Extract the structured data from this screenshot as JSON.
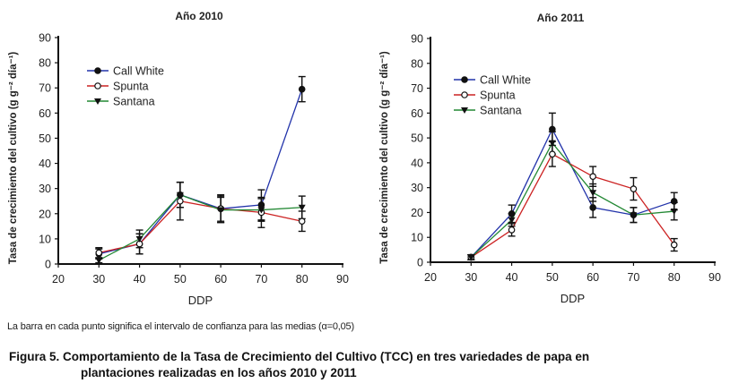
{
  "chart_data": [
    {
      "type": "line",
      "title": "Año 2010",
      "xlabel": "DDP",
      "ylabel": "Tasa de crecimiento del cultivo (g g⁻² día⁻¹)",
      "xlim": [
        20,
        90
      ],
      "ylim": [
        0,
        90
      ],
      "xticks": [
        20,
        30,
        40,
        50,
        60,
        70,
        80,
        90
      ],
      "yticks": [
        0,
        10,
        20,
        30,
        40,
        50,
        60,
        70,
        80,
        90
      ],
      "x": [
        30,
        40,
        50,
        60,
        70,
        80
      ],
      "legend_position": "top-left",
      "error_bars": "95% confidence interval",
      "series": [
        {
          "name": "Call White",
          "color": "#2233aa",
          "marker": "filled-circle",
          "values": [
            4,
            8,
            27.5,
            22,
            23.5,
            69.5
          ],
          "ci": [
            2,
            4,
            5,
            5.5,
            6,
            5
          ]
        },
        {
          "name": "Spunta",
          "color": "#cc2222",
          "marker": "open-circle",
          "values": [
            4.5,
            8,
            25,
            22,
            20.5,
            17
          ],
          "ci": [
            2,
            4,
            7.5,
            5,
            6,
            4
          ]
        },
        {
          "name": "Santana",
          "color": "#228833",
          "marker": "filled-triangle-down",
          "values": [
            1.5,
            10,
            27.5,
            21.5,
            21.5,
            22.5
          ],
          "ci": [
            1,
            3.5,
            5,
            5,
            4.5,
            4.5
          ]
        }
      ]
    },
    {
      "type": "line",
      "title": "Año 2011",
      "xlabel": "DDP",
      "ylabel": "Tasa de crecimiento del cultivo (g g⁻² día⁻¹)",
      "xlim": [
        20,
        90
      ],
      "ylim": [
        0,
        90
      ],
      "xticks": [
        20,
        30,
        40,
        50,
        60,
        70,
        80,
        90
      ],
      "yticks": [
        0,
        10,
        20,
        30,
        40,
        50,
        60,
        70,
        80,
        90
      ],
      "x": [
        30,
        40,
        50,
        60,
        70,
        80
      ],
      "legend_position": "top-left",
      "error_bars": "95% confidence interval",
      "series": [
        {
          "name": "Call White",
          "color": "#2233aa",
          "marker": "filled-circle",
          "values": [
            2,
            19.5,
            53.5,
            22,
            19,
            24.5
          ],
          "ci": [
            1,
            3.5,
            6.5,
            4,
            3,
            3.5
          ]
        },
        {
          "name": "Spunta",
          "color": "#cc2222",
          "marker": "open-circle",
          "values": [
            2,
            13,
            43.5,
            34.5,
            29.5,
            7
          ],
          "ci": [
            1,
            2.5,
            5,
            4,
            4.5,
            2.5
          ]
        },
        {
          "name": "Santana",
          "color": "#228833",
          "marker": "filled-triangle-down",
          "values": [
            2,
            17,
            48,
            28,
            19,
            20.5
          ],
          "ci": [
            1,
            2.5,
            4.5,
            3.5,
            3,
            3.5
          ]
        }
      ]
    }
  ],
  "note": "La barra en cada punto significa el intervalo de confianza para las medias (α=0,05)",
  "caption": {
    "line1": "Figura 5. Comportamiento de la Tasa de Crecimiento del Cultivo (TCC) en tres variedades de papa en",
    "line2": "plantaciones realizadas en los años 2010 y 2011"
  }
}
